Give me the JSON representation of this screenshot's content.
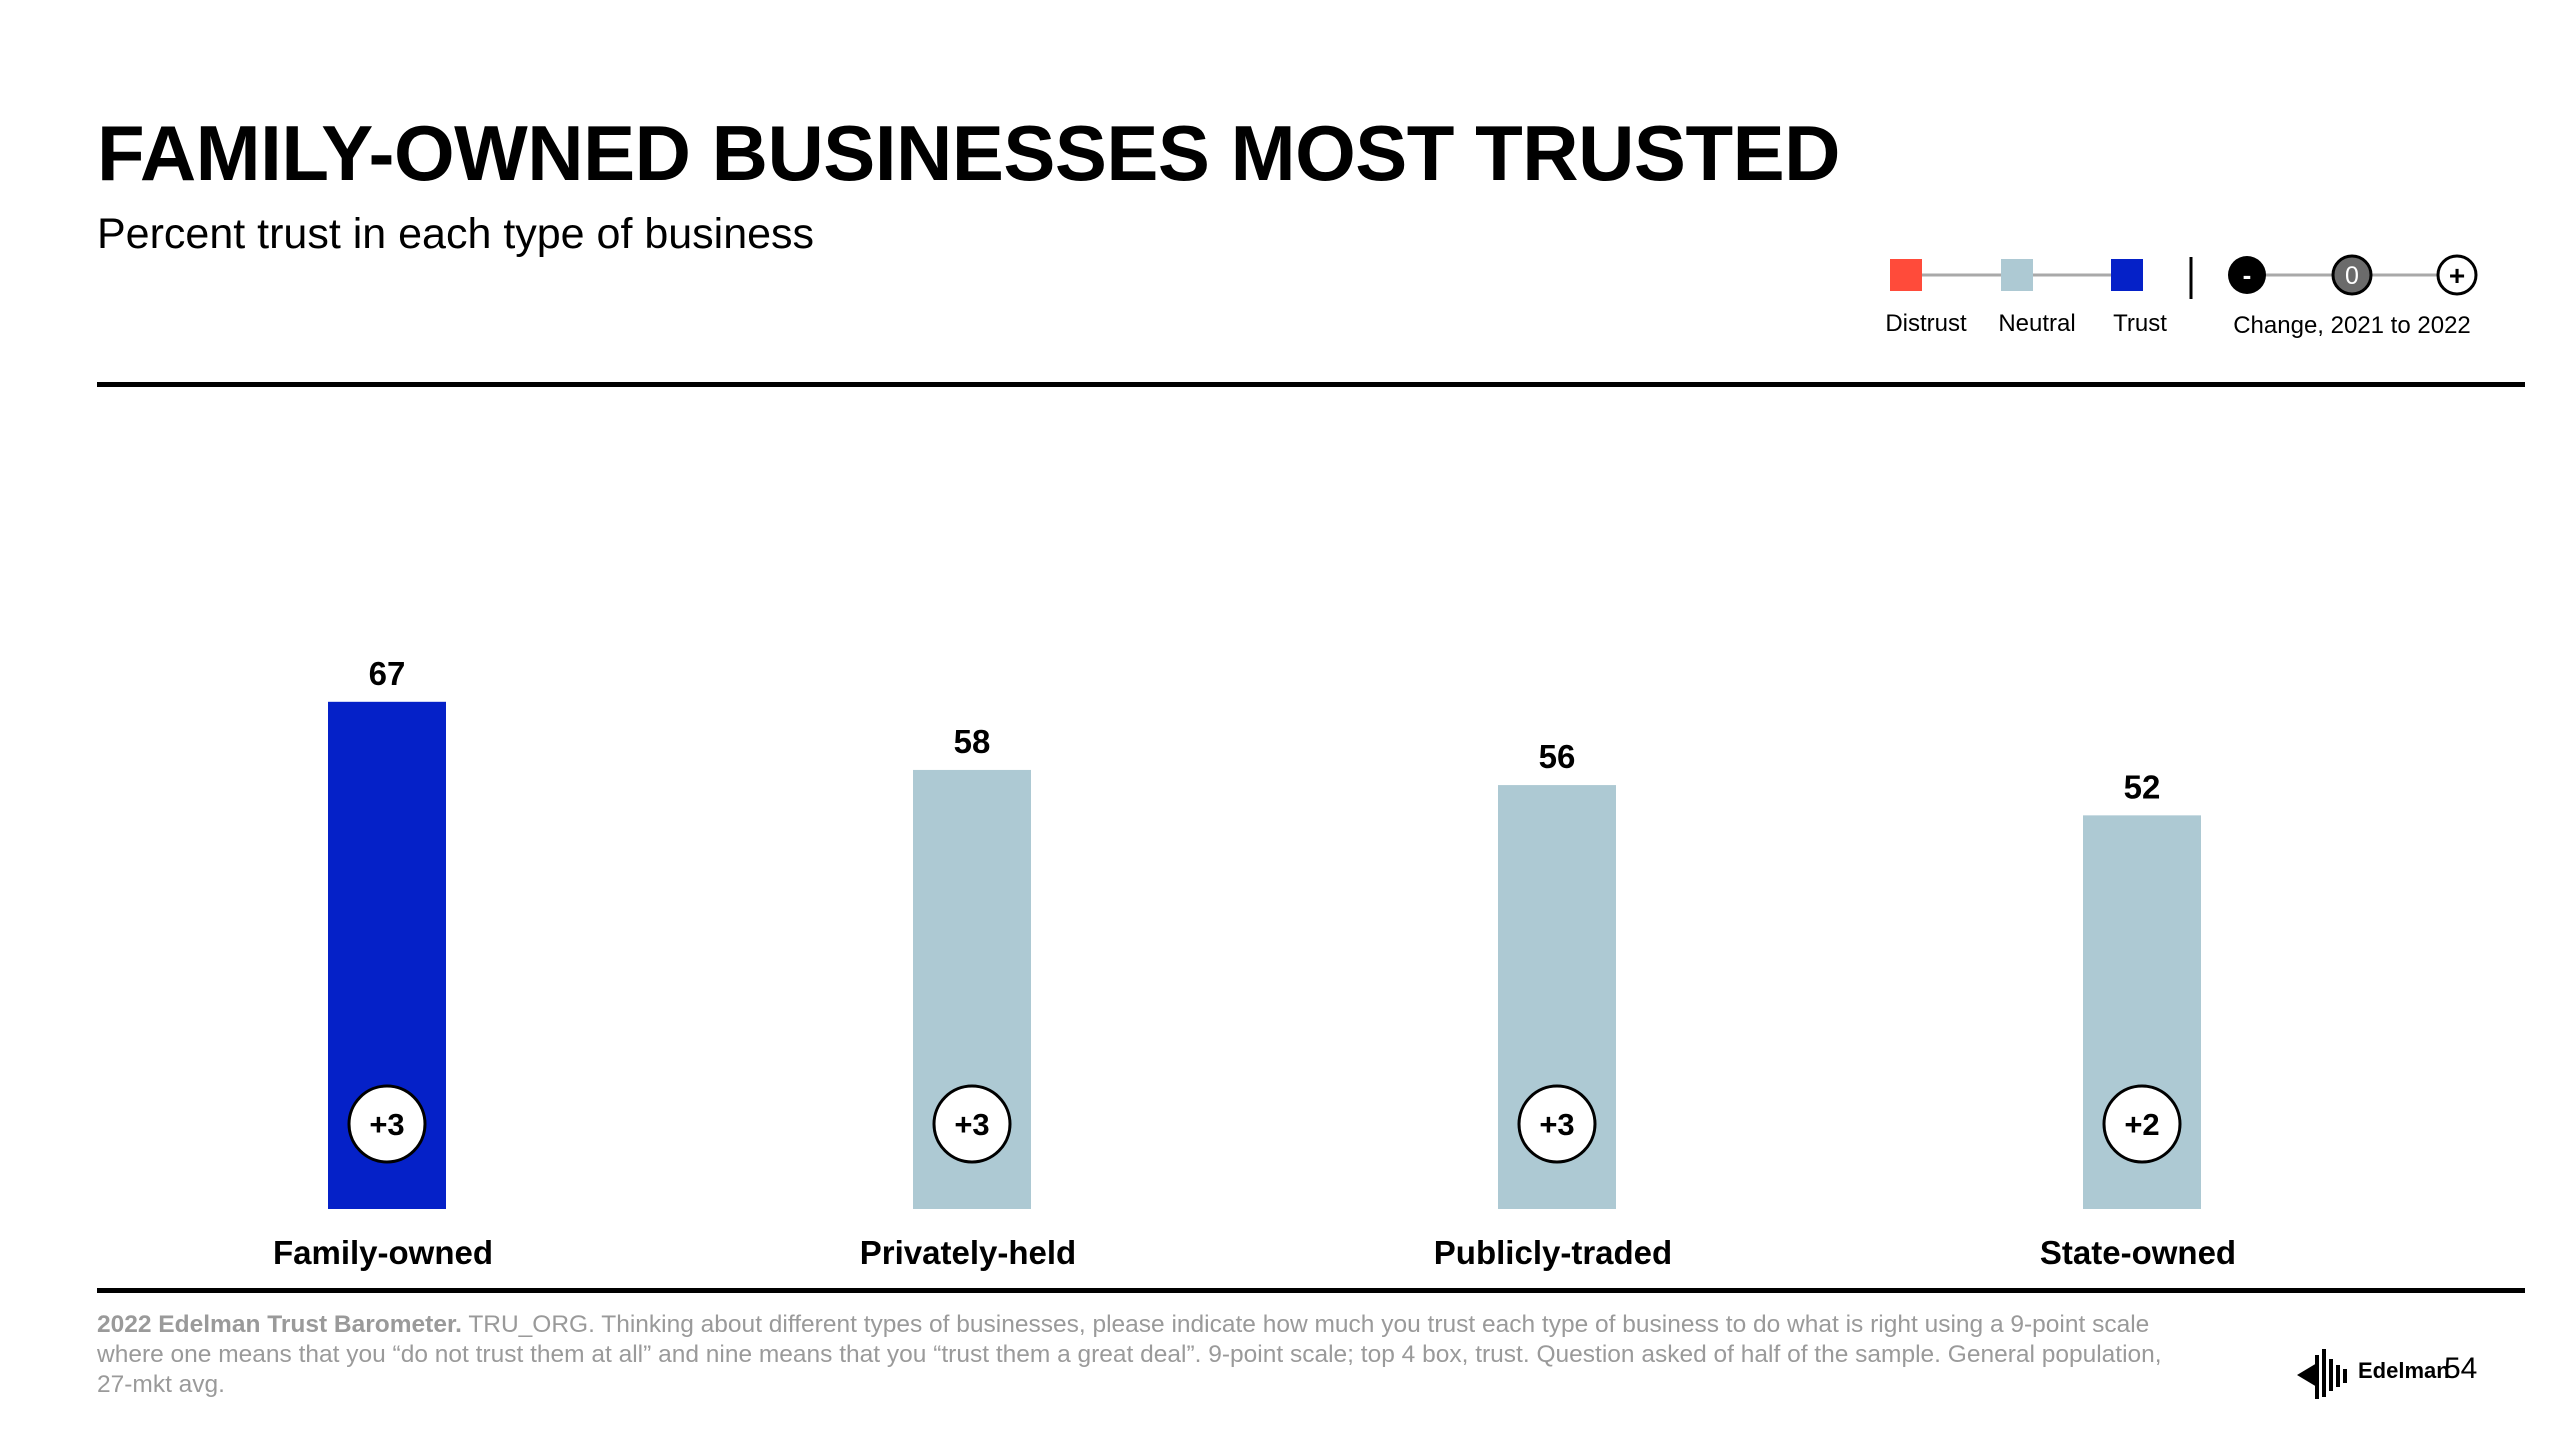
{
  "title": "FAMILY-OWNED BUSINESSES MOST TRUSTED",
  "subtitle": "Percent trust in each type of business",
  "legend": {
    "items": [
      {
        "label": "Distrust",
        "color": "#ff4b3a"
      },
      {
        "label": "Neutral",
        "color": "#adc9d3"
      },
      {
        "label": "Trust",
        "color": "#0521c8"
      }
    ],
    "change_label": "Change, 2021 to 2022",
    "change_symbols": [
      "-",
      "0",
      "+"
    ]
  },
  "chart_data": {
    "type": "bar",
    "categories": [
      "Family-owned",
      "Privately-held",
      "Publicly-traded",
      "State-owned"
    ],
    "values": [
      67,
      58,
      56,
      52
    ],
    "changes": [
      "+3",
      "+3",
      "+3",
      "+2"
    ],
    "bar_levels": [
      "Trust",
      "Neutral",
      "Neutral",
      "Neutral"
    ],
    "colors": {
      "Trust": "#0521c8",
      "Neutral": "#adc9d3",
      "Distrust": "#ff4b3a"
    },
    "ylim": [
      0,
      100
    ]
  },
  "footnote": {
    "source": "2022 Edelman Trust Barometer.",
    "text": " TRU_ORG. Thinking about different types of businesses, please indicate how much you trust each type of business to do what is right using a 9-point scale where one means that you “do not trust them at all” and nine means that you “trust them a great deal”. 9-point scale; top 4 box, trust. Question asked of half of the sample. General population, 27-mkt avg."
  },
  "brand": "Edelman",
  "page_number": "54"
}
